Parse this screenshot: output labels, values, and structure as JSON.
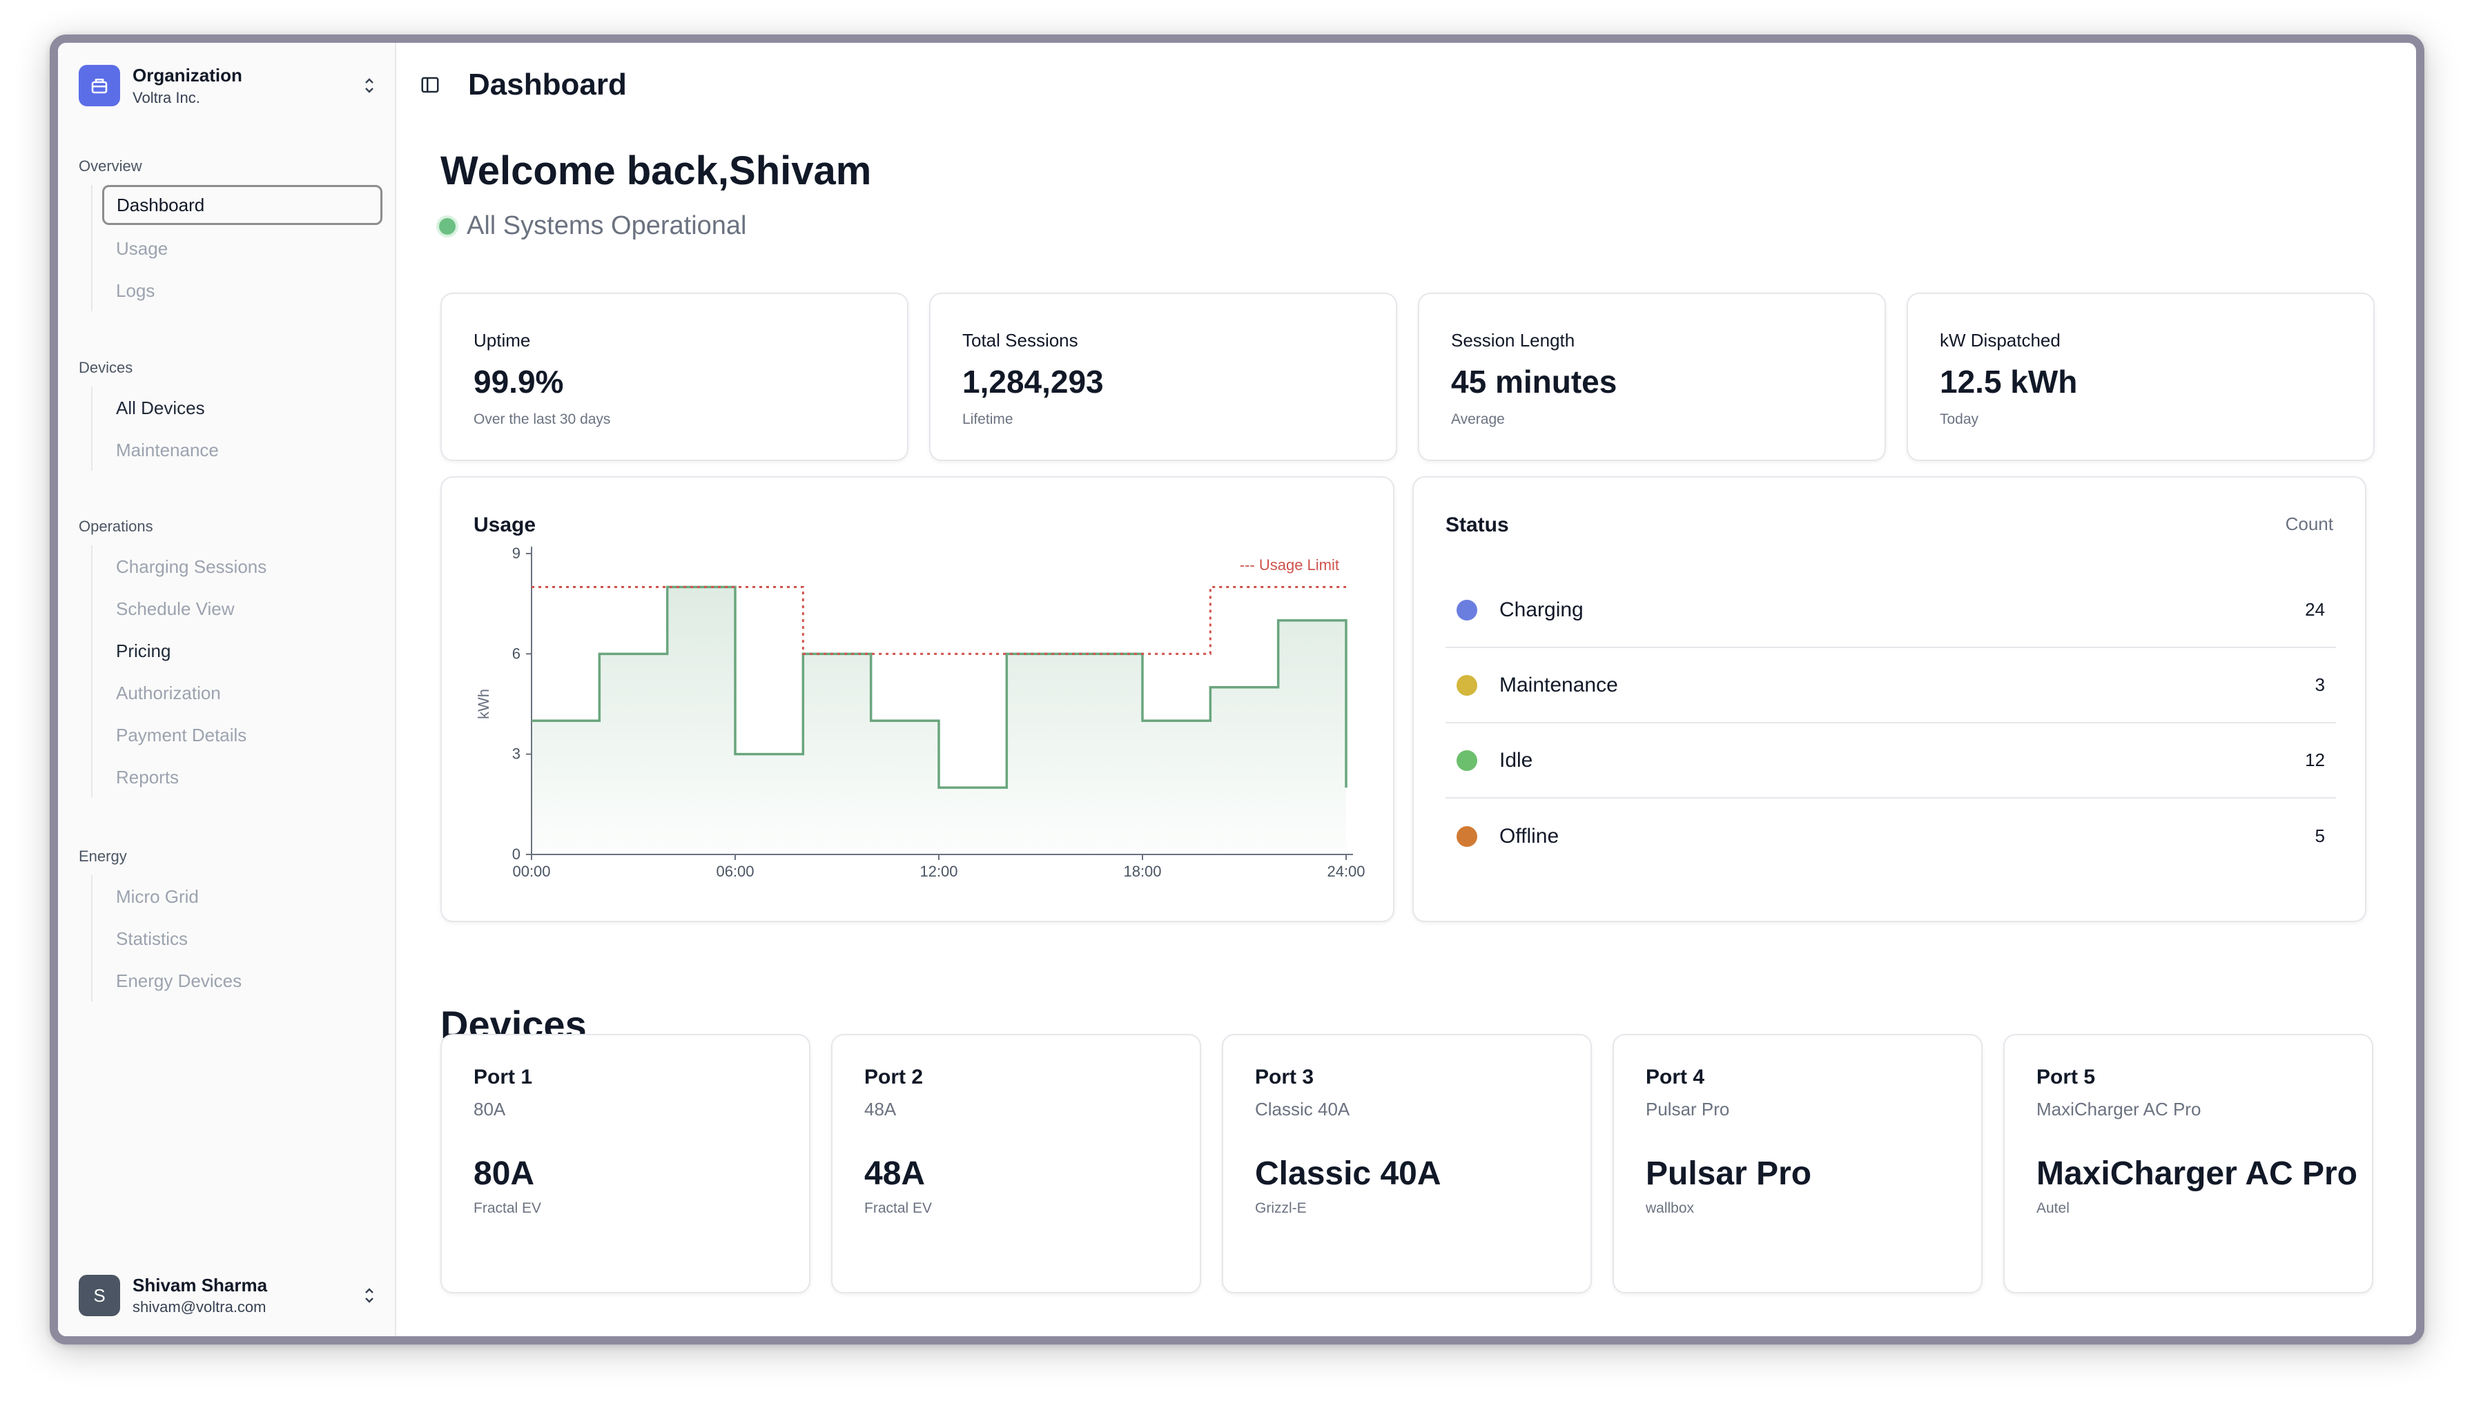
{
  "sidebar": {
    "org": {
      "title": "Organization",
      "subtitle": "Voltra Inc."
    },
    "groups": [
      {
        "title": "Overview",
        "items": [
          "Dashboard",
          "Usage",
          "Logs"
        ]
      },
      {
        "title": "Devices",
        "items": [
          "All Devices",
          "Maintenance"
        ]
      },
      {
        "title": "Operations",
        "items": [
          "Charging Sessions",
          "Schedule View",
          "Pricing",
          "Authorization",
          "Payment Details",
          "Reports"
        ]
      },
      {
        "title": "Energy",
        "items": [
          "Micro Grid",
          "Statistics",
          "Energy Devices"
        ]
      }
    ],
    "user": {
      "initial": "S",
      "name": "Shivam Sharma",
      "email": "shivam@voltra.com"
    }
  },
  "header": {
    "title": "Dashboard"
  },
  "welcome": "Welcome back,Shivam",
  "system_status": "All Systems Operational",
  "stats": [
    {
      "label": "Uptime",
      "value": "99.9%",
      "sub": "Over the last 30 days"
    },
    {
      "label": "Total Sessions",
      "value": "1,284,293",
      "sub": "Lifetime"
    },
    {
      "label": "Session Length",
      "value": "45 minutes",
      "sub": "Average"
    },
    {
      "label": "kW Dispatched",
      "value": "12.5 kWh",
      "sub": "Today"
    }
  ],
  "usage_card": {
    "title": "Usage"
  },
  "chart_data": {
    "type": "line",
    "step": true,
    "ylabel": "kWh",
    "ylim": [
      0,
      9
    ],
    "yticks": [
      "0",
      "3",
      "6",
      "9"
    ],
    "xticks": [
      "00:00",
      "06:00",
      "12:00",
      "18:00",
      "24:00"
    ],
    "xlim": [
      0,
      24
    ],
    "series": [
      {
        "name": "Usage",
        "color": "#6aa67e",
        "x": [
          0,
          2,
          4,
          6,
          8,
          10,
          12,
          14,
          16,
          18,
          20,
          22,
          24
        ],
        "y": [
          4,
          6,
          8,
          3,
          6,
          4,
          2,
          6,
          6,
          4,
          5,
          7,
          2
        ]
      },
      {
        "name": "Usage Limit",
        "color": "#d0534b",
        "dashed": true,
        "x": [
          0,
          8,
          8,
          10,
          18,
          20,
          20,
          24
        ],
        "y": [
          8,
          8,
          6,
          6,
          6,
          6,
          8,
          8
        ]
      }
    ],
    "legend": "top-right",
    "legend_label": "--- Usage Limit"
  },
  "status_card": {
    "title": "Status",
    "count_label": "Count",
    "rows": [
      {
        "name": "Charging",
        "count": "24",
        "color": "#6a7ee0"
      },
      {
        "name": "Maintenance",
        "count": "3",
        "color": "#d4b73c"
      },
      {
        "name": "Idle",
        "count": "12",
        "color": "#6cbf6c"
      },
      {
        "name": "Offline",
        "count": "5",
        "color": "#d17a33"
      }
    ]
  },
  "devices_title": "Devices",
  "devices": [
    {
      "name": "Port 1",
      "model": "80A",
      "big": "80A",
      "brand": "Fractal EV"
    },
    {
      "name": "Port 2",
      "model": "48A",
      "big": "48A",
      "brand": "Fractal EV"
    },
    {
      "name": "Port 3",
      "model": "Classic 40A",
      "big": "Classic 40A",
      "brand": "Grizzl-E"
    },
    {
      "name": "Port 4",
      "model": "Pulsar Pro",
      "big": "Pulsar Pro",
      "brand": "wallbox"
    },
    {
      "name": "Port 5",
      "model": "MaxiCharger AC Pro",
      "big": "MaxiCharger AC Pro",
      "brand": "Autel"
    }
  ]
}
